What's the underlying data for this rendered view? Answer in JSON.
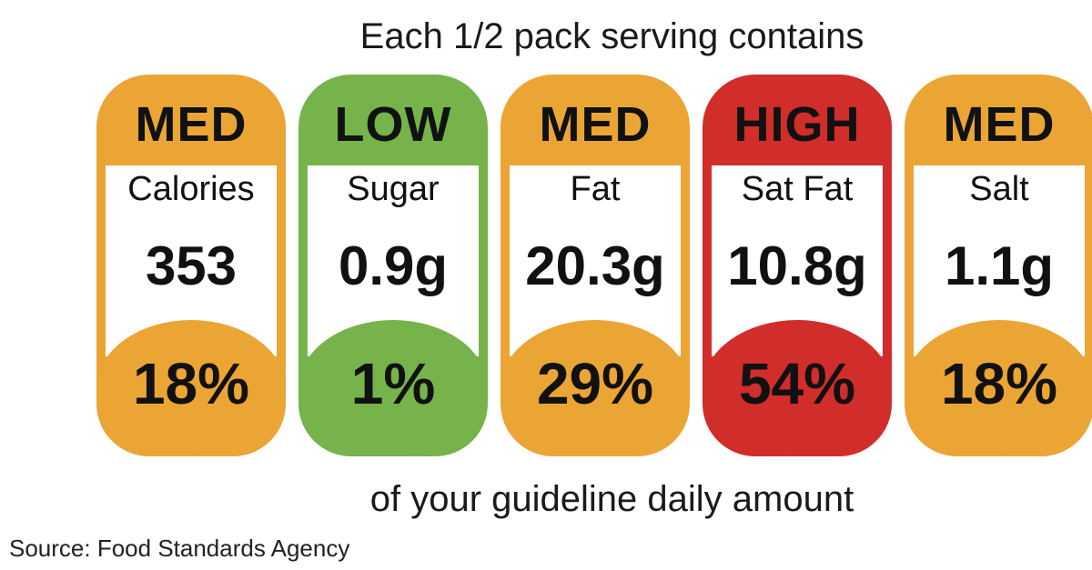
{
  "header": {
    "title": "Each 1/2 pack serving contains"
  },
  "footer": {
    "caption": "of your guideline daily amount"
  },
  "source": {
    "text": "Source: Food Standards Agency"
  },
  "colors": {
    "MED": "#eba535",
    "LOW": "#76b34a",
    "HIGH": "#d12d2a"
  },
  "items": [
    {
      "level": "MED",
      "nutrient": "Calories",
      "amount": "353",
      "percent": "18%"
    },
    {
      "level": "LOW",
      "nutrient": "Sugar",
      "amount": "0.9g",
      "percent": "1%"
    },
    {
      "level": "MED",
      "nutrient": "Fat",
      "amount": "20.3g",
      "percent": "29%"
    },
    {
      "level": "HIGH",
      "nutrient": "Sat Fat",
      "amount": "10.8g",
      "percent": "54%"
    },
    {
      "level": "MED",
      "nutrient": "Salt",
      "amount": "1.1g",
      "percent": "18%"
    }
  ]
}
